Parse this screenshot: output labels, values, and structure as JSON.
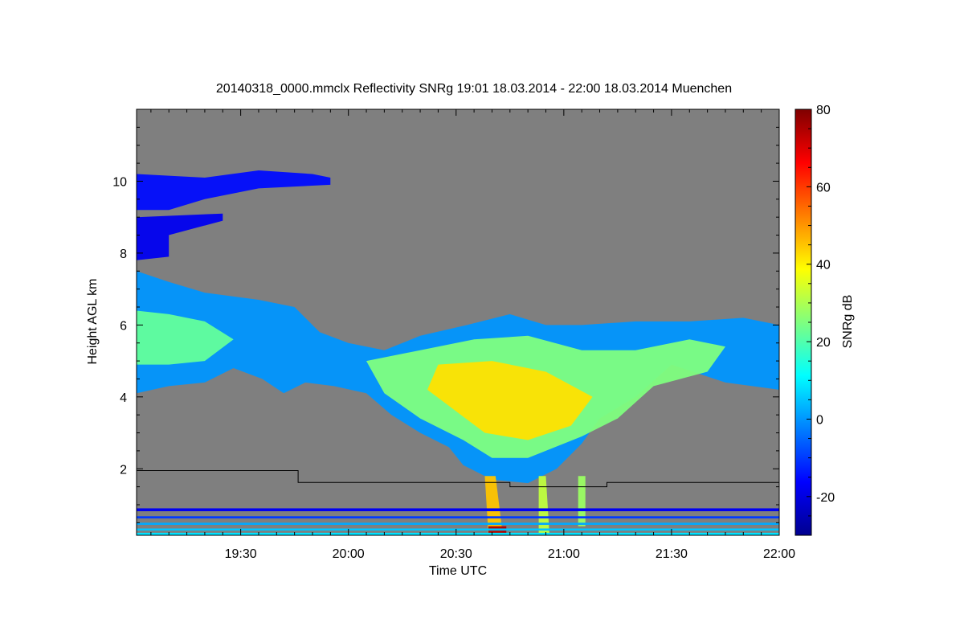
{
  "chart_data": {
    "type": "heatmap",
    "title": "20140318_0000.mmclx Reflectivity SNRg   19:01 18.03.2014 - 22:00 18.03.2014 Muenchen",
    "xlabel": "Time UTC",
    "ylabel": "Height AGL km",
    "colorbar_label": "SNRg dB",
    "background_color": "#7f7f7f",
    "x_range_minutes_utc": [
      1141,
      1320
    ],
    "y_range_km": [
      0.15,
      12.0
    ],
    "x_ticks": [
      {
        "minute": 1170,
        "label": "19:30"
      },
      {
        "minute": 1200,
        "label": "20:00"
      },
      {
        "minute": 1230,
        "label": "20:30"
      },
      {
        "minute": 1260,
        "label": "21:00"
      },
      {
        "minute": 1290,
        "label": "21:30"
      },
      {
        "minute": 1320,
        "label": "22:00"
      }
    ],
    "y_ticks": [
      {
        "value": 2,
        "label": "2"
      },
      {
        "value": 4,
        "label": "4"
      },
      {
        "value": 6,
        "label": "6"
      },
      {
        "value": 8,
        "label": "8"
      },
      {
        "value": 10,
        "label": "10"
      }
    ],
    "colorbar": {
      "range": [
        -30,
        80
      ],
      "ticks": [
        {
          "value": -20,
          "label": "-20"
        },
        {
          "value": 0,
          "label": "0"
        },
        {
          "value": 20,
          "label": "20"
        },
        {
          "value": 40,
          "label": "40"
        },
        {
          "value": 60,
          "label": "60"
        },
        {
          "value": 80,
          "label": "80"
        }
      ],
      "colormap": [
        "#00008f",
        "#0000ff",
        "#007fff",
        "#00ffff",
        "#7fff7f",
        "#ffff00",
        "#ff7f00",
        "#ff0000",
        "#7f0000"
      ]
    },
    "boundary_line_km": [
      {
        "t": 1141,
        "h": 1.95
      },
      {
        "t": 1186,
        "h": 1.95
      },
      {
        "t": 1186,
        "h": 1.62
      },
      {
        "t": 1245,
        "h": 1.62
      },
      {
        "t": 1245,
        "h": 1.5
      },
      {
        "t": 1272,
        "h": 1.5
      },
      {
        "t": 1272,
        "h": 1.62
      },
      {
        "t": 1320,
        "h": 1.62
      }
    ],
    "echo_regions": [
      {
        "name": "cirrus-upper",
        "snr_db": -15,
        "points": [
          [
            1141,
            10.2
          ],
          [
            1160,
            10.1
          ],
          [
            1175,
            10.3
          ],
          [
            1190,
            10.2
          ],
          [
            1195,
            10.1
          ],
          [
            1195,
            9.9
          ],
          [
            1175,
            9.8
          ],
          [
            1160,
            9.5
          ],
          [
            1150,
            9.2
          ],
          [
            1141,
            9.2
          ]
        ]
      },
      {
        "name": "cirrus-mid",
        "snr_db": -18,
        "points": [
          [
            1141,
            9.0
          ],
          [
            1165,
            9.1
          ],
          [
            1165,
            8.9
          ],
          [
            1150,
            8.5
          ],
          [
            1150,
            7.9
          ],
          [
            1141,
            7.8
          ]
        ]
      },
      {
        "name": "stratiform-left-outer",
        "snr_db": 0,
        "points": [
          [
            1141,
            7.5
          ],
          [
            1150,
            7.2
          ],
          [
            1160,
            6.9
          ],
          [
            1175,
            6.7
          ],
          [
            1185,
            6.5
          ],
          [
            1192,
            5.8
          ],
          [
            1200,
            5.5
          ],
          [
            1210,
            5.3
          ],
          [
            1220,
            5.7
          ],
          [
            1233,
            6.0
          ],
          [
            1245,
            6.3
          ],
          [
            1255,
            6.0
          ],
          [
            1265,
            6.0
          ],
          [
            1280,
            6.1
          ],
          [
            1295,
            6.1
          ],
          [
            1310,
            6.2
          ],
          [
            1320,
            6.0
          ],
          [
            1320,
            4.2
          ],
          [
            1305,
            4.4
          ],
          [
            1290,
            4.9
          ],
          [
            1280,
            4.0
          ],
          [
            1270,
            3.4
          ],
          [
            1265,
            2.7
          ],
          [
            1258,
            2.0
          ],
          [
            1250,
            1.6
          ],
          [
            1240,
            1.7
          ],
          [
            1232,
            2.1
          ],
          [
            1228,
            2.6
          ],
          [
            1220,
            3.0
          ],
          [
            1212,
            3.5
          ],
          [
            1205,
            4.1
          ],
          [
            1196,
            4.3
          ],
          [
            1188,
            4.4
          ],
          [
            1182,
            4.1
          ],
          [
            1176,
            4.5
          ],
          [
            1168,
            4.8
          ],
          [
            1160,
            4.4
          ],
          [
            1150,
            4.3
          ],
          [
            1141,
            4.1
          ]
        ]
      },
      {
        "name": "stratiform-left-core",
        "snr_db": 22,
        "points": [
          [
            1141,
            6.4
          ],
          [
            1150,
            6.3
          ],
          [
            1160,
            6.1
          ],
          [
            1168,
            5.6
          ],
          [
            1160,
            5.0
          ],
          [
            1150,
            4.9
          ],
          [
            1141,
            4.9
          ]
        ]
      },
      {
        "name": "convective-mid",
        "snr_db": 25,
        "points": [
          [
            1205,
            5.0
          ],
          [
            1220,
            5.3
          ],
          [
            1235,
            5.6
          ],
          [
            1250,
            5.7
          ],
          [
            1265,
            5.3
          ],
          [
            1280,
            5.3
          ],
          [
            1295,
            5.6
          ],
          [
            1305,
            5.4
          ],
          [
            1300,
            4.7
          ],
          [
            1285,
            4.3
          ],
          [
            1275,
            3.4
          ],
          [
            1265,
            2.9
          ],
          [
            1250,
            2.3
          ],
          [
            1240,
            2.3
          ],
          [
            1232,
            2.8
          ],
          [
            1220,
            3.4
          ],
          [
            1210,
            4.1
          ]
        ]
      },
      {
        "name": "convective-core",
        "snr_db": 42,
        "points": [
          [
            1225,
            4.9
          ],
          [
            1240,
            5.0
          ],
          [
            1255,
            4.7
          ],
          [
            1268,
            4.0
          ],
          [
            1262,
            3.2
          ],
          [
            1250,
            2.8
          ],
          [
            1238,
            3.0
          ],
          [
            1230,
            3.6
          ],
          [
            1222,
            4.2
          ]
        ]
      },
      {
        "name": "precip-shaft-1",
        "snr_db": 45,
        "points": [
          [
            1238,
            1.8
          ],
          [
            1241,
            1.8
          ],
          [
            1243,
            0.15
          ],
          [
            1239,
            0.15
          ]
        ]
      },
      {
        "name": "precip-shaft-2",
        "snr_db": 32,
        "points": [
          [
            1253,
            1.8
          ],
          [
            1255,
            1.8
          ],
          [
            1256,
            0.15
          ],
          [
            1253,
            0.15
          ]
        ]
      },
      {
        "name": "precip-shaft-3",
        "snr_db": 28,
        "points": [
          [
            1264,
            1.8
          ],
          [
            1266,
            1.8
          ],
          [
            1266,
            0.4
          ],
          [
            1264,
            0.4
          ]
        ]
      },
      {
        "name": "ground-core",
        "snr_db": 75,
        "points": [
          [
            1239,
            0.15
          ],
          [
            1244,
            0.15
          ],
          [
            1244,
            0.4
          ],
          [
            1239,
            0.4
          ]
        ]
      }
    ],
    "clutter_layers_km": [
      {
        "h": [
          0.15,
          0.22
        ],
        "snr_db": 8
      },
      {
        "h": [
          0.28,
          0.34
        ],
        "snr_db": 5
      },
      {
        "h": [
          0.44,
          0.5
        ],
        "snr_db": 2
      },
      {
        "h": [
          0.62,
          0.68
        ],
        "snr_db": -10
      },
      {
        "h": [
          0.82,
          0.9
        ],
        "snr_db": -18
      }
    ]
  }
}
